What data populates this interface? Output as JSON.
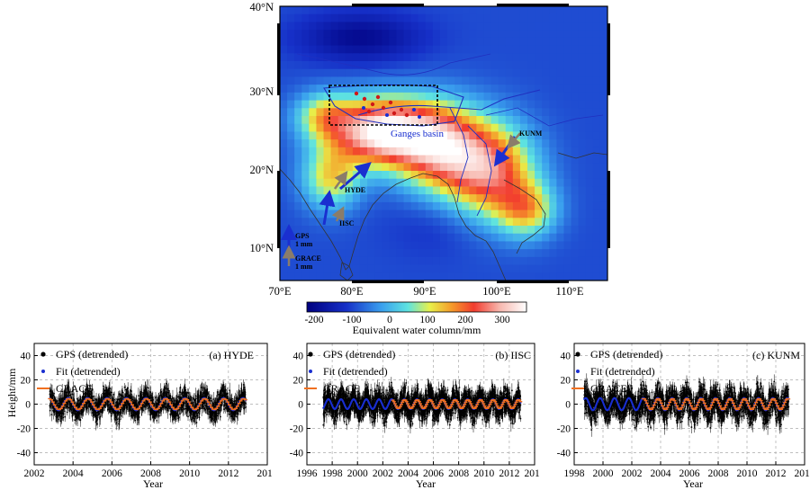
{
  "chart_data": [
    {
      "type": "heatmap",
      "title": "",
      "map": {
        "lon_range": [
          70,
          115
        ],
        "lat_range": [
          5,
          40
        ],
        "lon_ticks": [
          "70°E",
          "80°E",
          "90°E",
          "100°E",
          "110°E"
        ],
        "lat_ticks": [
          "10°N",
          "20°N",
          "30°N",
          "40°N"
        ],
        "annotations": [
          "Ganges basin",
          "HYDE",
          "IISC",
          "KUNM"
        ],
        "legend": {
          "gps_label": "GPS",
          "gps_scale": "1 mm",
          "grace_label": "GRACE",
          "grace_scale": "1 mm"
        }
      },
      "colorbar": {
        "label": "Equivalent water column/mm",
        "ticks": [
          "-200",
          "-100",
          "0",
          "100",
          "200",
          "300"
        ],
        "range": [
          -200,
          380
        ]
      },
      "colors": {
        "amplitude_low": "#1a35c8",
        "amplitude_high": "#ffffff",
        "gps_arrow": "#1a2fd0",
        "grace_arrow": "#8a7c6a",
        "gps_sites": "#d01818",
        "basin_outline": "#2030c0"
      }
    },
    {
      "type": "scatter",
      "title": "(a) HYDE",
      "xlabel": "Year",
      "ylabel": "Height/mm",
      "xlim": [
        2002,
        2014
      ],
      "ylim": [
        -50,
        50
      ],
      "x_ticks": [
        "2002",
        "2004",
        "2006",
        "2008",
        "2010",
        "2012",
        "2014"
      ],
      "y_ticks": [
        "40",
        "20",
        "0",
        "-20",
        "-40"
      ],
      "data_start": 2002.8,
      "data_end": 2012.9,
      "seasonal_amplitude_mm": 5,
      "peak_phase_year_fraction": 0.75,
      "series": [
        {
          "name": "GPS (detrended)",
          "spread_mm": 9
        },
        {
          "name": "Fit (detrended)"
        },
        {
          "name": "GRACE"
        }
      ]
    },
    {
      "type": "scatter",
      "title": "(b) IISC",
      "xlabel": "Year",
      "ylabel": "",
      "xlim": [
        1996,
        2014
      ],
      "ylim": [
        -50,
        50
      ],
      "x_ticks": [
        "1996",
        "1998",
        "2000",
        "2002",
        "2004",
        "2006",
        "2008",
        "2010",
        "2012",
        "2014"
      ],
      "y_ticks": [
        "40",
        "20",
        "0",
        "-20",
        "-40"
      ],
      "data_start": 1997.3,
      "data_end": 2012.9,
      "seasonal_amplitude_mm": 4,
      "peak_phase_year_fraction": 0.7,
      "series": [
        {
          "name": "GPS (detrended)",
          "spread_mm": 10
        },
        {
          "name": "Fit (detrended)"
        },
        {
          "name": "GRACE"
        }
      ]
    },
    {
      "type": "scatter",
      "title": "(c) KUNM",
      "xlabel": "Year",
      "ylabel": "",
      "xlim": [
        1998,
        2014
      ],
      "ylim": [
        -50,
        50
      ],
      "x_ticks": [
        "1998",
        "2000",
        "2002",
        "2004",
        "2006",
        "2008",
        "2010",
        "2012",
        "2014"
      ],
      "y_ticks": [
        "40",
        "20",
        "0",
        "-20",
        "-40"
      ],
      "data_start": 1998.7,
      "data_end": 2012.9,
      "seasonal_amplitude_mm": 5,
      "peak_phase_year_fraction": 0.8,
      "series": [
        {
          "name": "GPS (detrended)",
          "spread_mm": 11
        },
        {
          "name": "Fit (detrended)"
        },
        {
          "name": "GRACE"
        }
      ]
    }
  ]
}
